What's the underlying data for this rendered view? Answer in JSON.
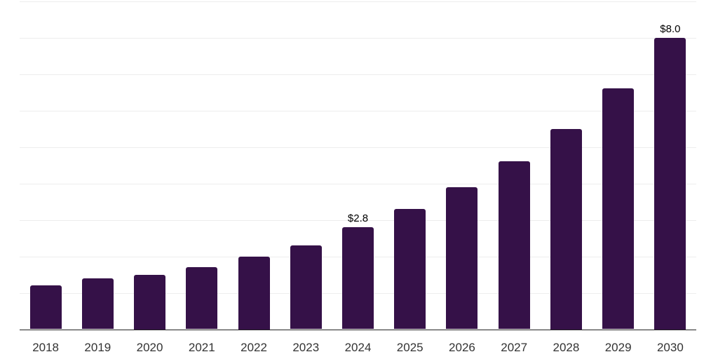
{
  "chart_data": {
    "type": "bar",
    "title": "",
    "xlabel": "",
    "ylabel": "",
    "categories": [
      "2018",
      "2019",
      "2020",
      "2021",
      "2022",
      "2023",
      "2024",
      "2025",
      "2026",
      "2027",
      "2028",
      "2029",
      "2030"
    ],
    "values": [
      1.2,
      1.4,
      1.5,
      1.7,
      2.0,
      2.3,
      2.8,
      3.3,
      3.9,
      4.6,
      5.5,
      6.6,
      8.0
    ],
    "value_labels": [
      "",
      "",
      "",
      "",
      "",
      "",
      "$2.8",
      "",
      "",
      "",
      "",
      "",
      "$8.0"
    ],
    "ylim": [
      0,
      9
    ],
    "gridline_step": 1,
    "grid": "horizontal",
    "y_tick_labels_shown": false,
    "legend": "none",
    "colors": {
      "bar": "#351148",
      "grid": "#ededed",
      "axis": "#222222",
      "tick_label": "#333333",
      "value_label": "#000000",
      "background": "#ffffff"
    }
  }
}
